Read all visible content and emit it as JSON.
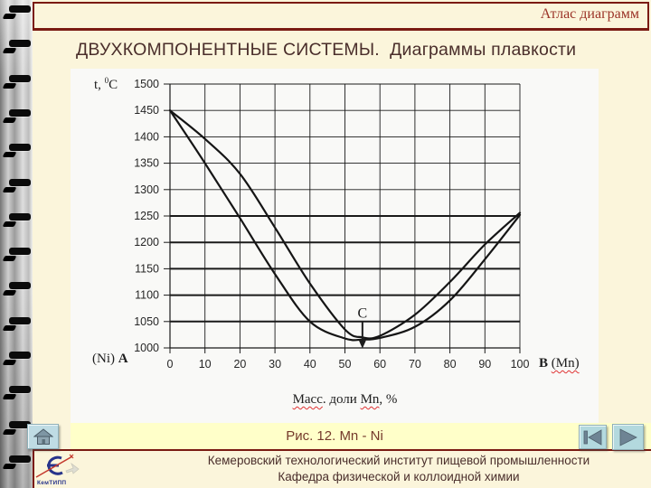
{
  "header": {
    "label": "Атлас диаграмм"
  },
  "title": "ДВУХКОМПОНЕНТНЫЕ СИСТЕМЫ.  Диаграммы плавкости",
  "chart_data": {
    "type": "line",
    "xlim": [
      0,
      100
    ],
    "ylim": [
      1000,
      1500
    ],
    "x_ticks": [
      0,
      10,
      20,
      30,
      40,
      50,
      60,
      70,
      80,
      90,
      100
    ],
    "y_ticks": [
      1000,
      1050,
      1100,
      1150,
      1200,
      1250,
      1300,
      1350,
      1400,
      1450,
      1500
    ],
    "grid": true,
    "ylabel": "t, 0C",
    "ylabel_parts": {
      "prefix": "t, ",
      "sup": "0",
      "unit": "C"
    },
    "xlabel": "Масс. доли Mn, %",
    "xlabel_parts": [
      {
        "text": "Масс",
        "wavy": true
      },
      {
        "text": ". доли ",
        "wavy": false
      },
      {
        "text": "Mn",
        "wavy": true
      },
      {
        "text": ", %",
        "wavy": false
      }
    ],
    "corner_left": {
      "paren": "(Ni)",
      "letter": "A"
    },
    "corner_right": {
      "letter": "B",
      "paren": "(Mn)"
    },
    "series": [
      {
        "name": "upper_curve",
        "points": [
          [
            0,
            1450
          ],
          [
            10,
            1396
          ],
          [
            20,
            1330
          ],
          [
            30,
            1228
          ],
          [
            40,
            1122
          ],
          [
            50,
            1035
          ],
          [
            55,
            1020
          ],
          [
            60,
            1023
          ],
          [
            70,
            1063
          ],
          [
            80,
            1125
          ],
          [
            90,
            1196
          ],
          [
            100,
            1256
          ]
        ]
      },
      {
        "name": "lower_curve",
        "points": [
          [
            0,
            1450
          ],
          [
            10,
            1350
          ],
          [
            20,
            1246
          ],
          [
            30,
            1140
          ],
          [
            40,
            1050
          ],
          [
            50,
            1018
          ],
          [
            55,
            1016
          ],
          [
            60,
            1019
          ],
          [
            70,
            1040
          ],
          [
            80,
            1090
          ],
          [
            90,
            1168
          ],
          [
            100,
            1252
          ]
        ]
      }
    ],
    "annotations": [
      {
        "label": "C",
        "x": 55,
        "y": 1016,
        "arrow": "down"
      }
    ]
  },
  "caption": "Рис. 12. Mn - Ni",
  "footer": {
    "line1": "Кемеровский технологический институт пищевой промышленности",
    "line2": "Кафедра физической и коллоидной химии"
  },
  "logo": {
    "text": "КемТИПП"
  },
  "colors": {
    "page_bg": "#FBF5DB",
    "accent_dark_red": "#7A1A12",
    "header_text": "#9B3327",
    "title_text": "#4A2E2B",
    "caption_text": "#74392B",
    "caption_band": "#FFFFC9",
    "button_bg": "#B3D9DE",
    "curve_color": "#151515"
  }
}
